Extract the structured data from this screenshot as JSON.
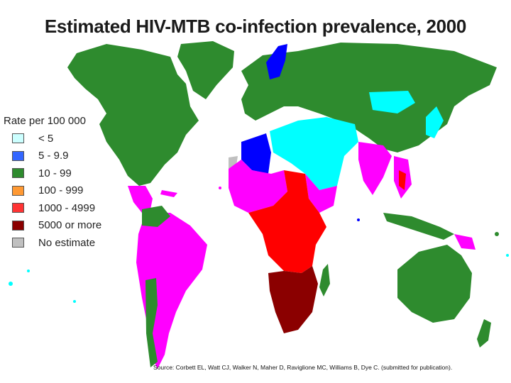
{
  "title": "Estimated HIV-MTB co-infection prevalence, 2000",
  "legend": {
    "title": "Rate per 100 000",
    "items": [
      {
        "label": "< 5",
        "color": "#ccffff"
      },
      {
        "label": "5 - 9.9",
        "color": "#3366ff"
      },
      {
        "label": "10 - 99",
        "color": "#2e8b2e"
      },
      {
        "label": "100 - 999",
        "color": "#ff9933"
      },
      {
        "label": "1000 - 4999",
        "color": "#ff3333"
      },
      {
        "label": "5000 or more",
        "color": "#8b0000"
      },
      {
        "label": "No estimate",
        "color": "#c0c0c0"
      }
    ]
  },
  "map_colors": {
    "green": "#2e8b2e",
    "magenta": "#ff00ff",
    "cyan": "#00ffff",
    "blue": "#0000ff",
    "red": "#ff0000",
    "darkred": "#8b0000",
    "grey": "#c0c0c0"
  },
  "source": "Source: Corbett EL, Watt CJ, Walker N, Maher D, Raviglione MC, Williams B, Dye C. (submitted for publication)."
}
